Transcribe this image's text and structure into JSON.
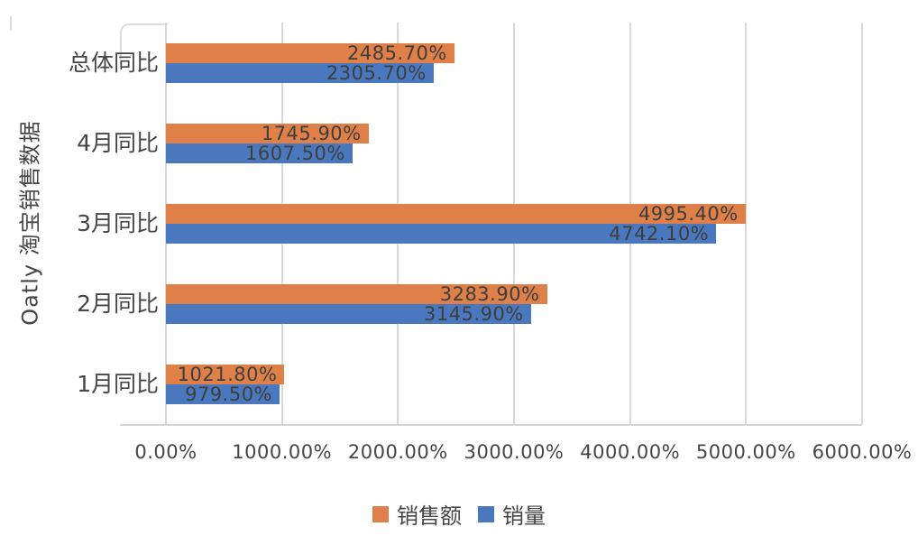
{
  "chart_data": {
    "type": "bar",
    "orientation": "horizontal",
    "axis_title": "Oatly 淘宝销售数据",
    "categories": [
      "总体同比",
      "4月同比",
      "3月同比",
      "2月同比",
      "1月同比"
    ],
    "series": [
      {
        "name": "销售额",
        "color": "#e08049",
        "values": [
          2485.7,
          1745.9,
          4995.4,
          3283.9,
          1021.8
        ],
        "labels": [
          "2485.70%",
          "1745.90%",
          "4995.40%",
          "3283.90%",
          "1021.80%"
        ]
      },
      {
        "name": "销量",
        "color": "#4a78be",
        "values": [
          2305.7,
          1607.5,
          4742.1,
          3145.9,
          979.5
        ],
        "labels": [
          "2305.70%",
          "1607.50%",
          "4742.10%",
          "3145.90%",
          "979.50%"
        ]
      }
    ],
    "x_axis": {
      "min": 0,
      "max": 6000,
      "tick_labels": [
        "0.00%",
        "1000.00%",
        "2000.00%",
        "3000.00%",
        "4000.00%",
        "5000.00%",
        "6000.00%"
      ]
    },
    "legend": {
      "position": "bottom",
      "entries": [
        "销售额",
        "销量"
      ]
    },
    "grid": "vertical",
    "colors": {
      "grid": "#d9d9d9",
      "text": "#464646",
      "data_label": "#3e3e3e",
      "background": "#ffffff"
    }
  }
}
